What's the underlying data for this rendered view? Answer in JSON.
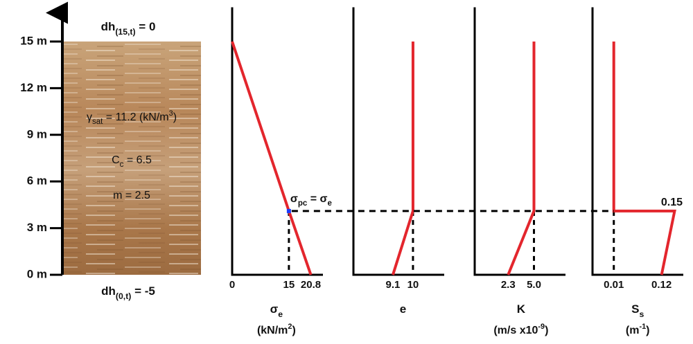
{
  "chart_data": [
    {
      "type": "soil-column",
      "ylim": [
        0,
        17.2
      ],
      "yticks": [
        {
          "value": 0,
          "label": "0 m"
        },
        {
          "value": 3,
          "label": "3 m"
        },
        {
          "value": 6,
          "label": "6 m"
        },
        {
          "value": 9,
          "label": "9 m"
        },
        {
          "value": 12,
          "label": "12 m"
        },
        {
          "value": 15,
          "label": "15 m"
        }
      ],
      "top_label": [
        {
          "t": "dh"
        },
        {
          "t": "(15,t)",
          "sub": true
        },
        {
          "t": " = 0"
        }
      ],
      "bottom_label": [
        {
          "t": "dh"
        },
        {
          "t": "(0,t)",
          "sub": true
        },
        {
          "t": " = -5"
        }
      ],
      "annotations": [
        [
          {
            "t": "γ"
          },
          {
            "t": "sat",
            "sub": true
          },
          {
            "t": " = 11.2 (kN/m"
          },
          {
            "t": "3",
            "sup": true
          },
          {
            "t": ")"
          }
        ],
        [
          {
            "t": "C"
          },
          {
            "t": "c",
            "sub": true
          },
          {
            "t": " = 6.5"
          }
        ],
        [
          {
            "t": "m  = 2.5"
          }
        ]
      ]
    },
    {
      "type": "profile",
      "xlim": [
        0,
        24
      ],
      "xticks": [
        0,
        15,
        20.8
      ],
      "ylim": [
        0,
        17.2
      ],
      "values": [
        0,
        15,
        20.8
      ],
      "depth": [
        15,
        4.1,
        0
      ],
      "color": "#e3262d",
      "marker_color": "#1a3cff",
      "xlabel": [
        {
          "t": "σ"
        },
        {
          "t": "e",
          "sub": true
        }
      ],
      "units": [
        {
          "t": "(kN/m"
        },
        {
          "t": "2",
          "sup": true
        },
        {
          "t": ")"
        }
      ],
      "annotation": [
        {
          "t": "σ"
        },
        {
          "t": "pc",
          "sub": true
        },
        {
          "t": " = σ"
        },
        {
          "t": "e",
          "sub": true
        }
      ]
    },
    {
      "type": "profile",
      "xlim": [
        7.33,
        11.4
      ],
      "xticks": [
        9.1,
        10
      ],
      "ylim": [
        0,
        17.2
      ],
      "values": [
        10,
        10,
        9.1
      ],
      "depth": [
        15,
        4.1,
        0
      ],
      "color": "#e3262d",
      "xlabel": [
        {
          "t": "e"
        }
      ]
    },
    {
      "type": "profile",
      "xlim": [
        -1.2,
        8.3
      ],
      "xticks": [
        2.3,
        {
          "value": 5,
          "label": "5.0"
        }
      ],
      "ylim": [
        0,
        17.2
      ],
      "values": [
        5,
        5,
        2.3
      ],
      "depth": [
        15,
        4.1,
        0
      ],
      "color": "#e3262d",
      "xlabel": [
        {
          "t": "K"
        }
      ],
      "units": [
        {
          "t": "(m/s x10"
        },
        {
          "t": "-9",
          "sup": true
        },
        {
          "t": ")"
        }
      ]
    },
    {
      "type": "profile",
      "xlim": [
        -0.039,
        0.17
      ],
      "xticks": [
        0.01,
        0.12
      ],
      "ylim": [
        0,
        17.2
      ],
      "values": [
        0.01,
        0.01,
        0.15,
        0.12
      ],
      "value_labels": [
        null,
        null,
        "0.15",
        null
      ],
      "depth": [
        15,
        4.1,
        4.1,
        0
      ],
      "color": "#e3262d",
      "xlabel": [
        {
          "t": "S"
        },
        {
          "t": "s",
          "sub": true
        }
      ],
      "units": [
        {
          "t": "(m"
        },
        {
          "t": "-1",
          "sup": true
        },
        {
          "t": ")"
        }
      ]
    }
  ]
}
